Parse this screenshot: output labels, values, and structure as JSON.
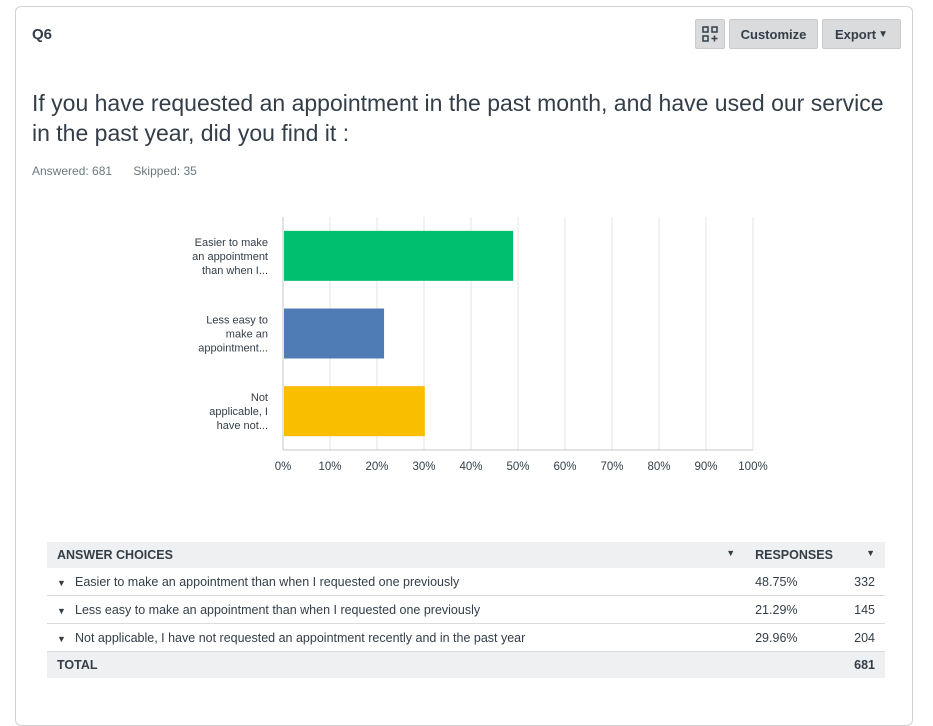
{
  "question": {
    "number": "Q6",
    "title": "If you have requested an appointment in the past month, and have used our service in the past year, did you find it :",
    "answered": "Answered: 681",
    "skipped": "Skipped: 35"
  },
  "toolbar": {
    "layout_icon": "grid-plus-icon",
    "customize_label": "Customize",
    "export_label": "Export"
  },
  "chart_data": {
    "type": "bar",
    "orientation": "horizontal",
    "categories": [
      [
        "Easier to make",
        "an appointment",
        "than when I..."
      ],
      [
        "Less easy to",
        "make an",
        "appointment..."
      ],
      [
        "Not",
        "applicable, I",
        "have not..."
      ]
    ],
    "values": [
      48.75,
      21.29,
      29.96
    ],
    "colors": [
      "#00bf6f",
      "#507cb6",
      "#f9be00"
    ],
    "ticks": [
      "0%",
      "10%",
      "20%",
      "30%",
      "40%",
      "50%",
      "60%",
      "70%",
      "80%",
      "90%",
      "100%"
    ],
    "xlim": [
      0,
      100
    ],
    "grid": true
  },
  "table": {
    "headers": {
      "choices": "ANSWER CHOICES",
      "responses": "RESPONSES"
    },
    "rows": [
      {
        "label": "Easier to make an appointment than when I requested one previously",
        "percent": "48.75%",
        "count": "332"
      },
      {
        "label": "Less easy to make an appointment than when I requested one previously",
        "percent": "21.29%",
        "count": "145"
      },
      {
        "label": "Not applicable, I have not requested an appointment recently and in the past year",
        "percent": "29.96%",
        "count": "204"
      }
    ],
    "total_label": "TOTAL",
    "total_count": "681"
  }
}
